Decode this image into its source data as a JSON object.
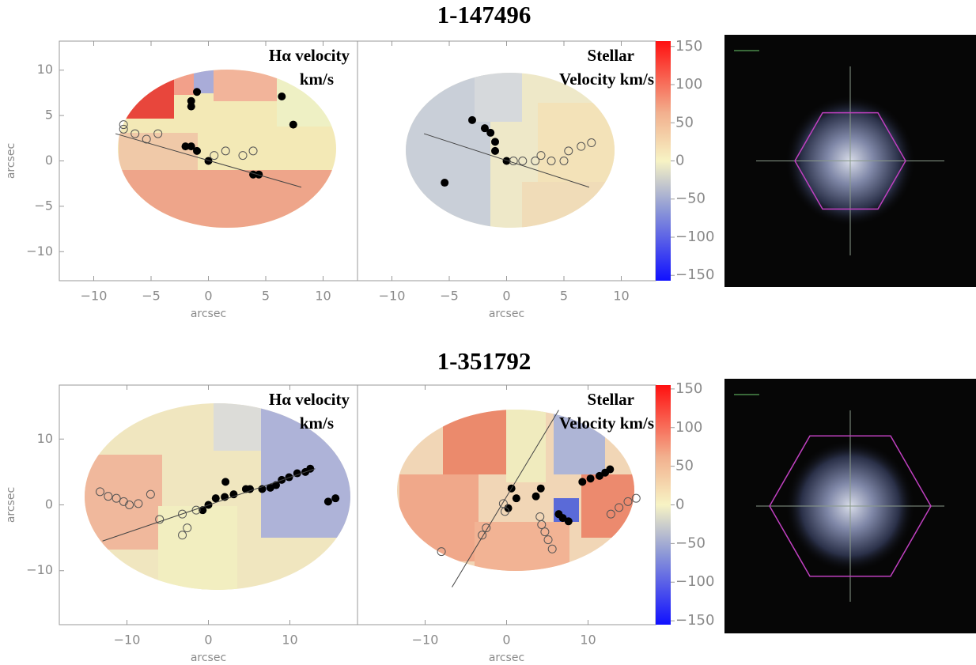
{
  "chart_data": [
    {
      "type": "scatter",
      "title": "1-147496",
      "panels": [
        {
          "label": [
            "Hα velocity",
            "km/s"
          ],
          "xlabel": "arcsec",
          "ylabel": "arcsec",
          "xlim": [
            -13,
            13
          ],
          "ylim": [
            -13.2,
            13.2
          ],
          "xticks": [
            {
              "value": -10,
              "label": "−10"
            },
            {
              "value": -5,
              "label": "−5"
            },
            0,
            5,
            10
          ],
          "yticks": [
            {
              "value": -10,
              "label": "−10"
            },
            {
              "value": -5,
              "label": "−5"
            },
            0,
            5,
            10
          ],
          "series": [
            {
              "marker": "filled",
              "color": "#000000",
              "x": [
                -1.0,
                -1.5,
                -1.5,
                6.4,
                7.4,
                -2.0,
                -1.5,
                -1.0,
                0,
                3.9,
                4.4
              ],
              "y": [
                7.6,
                6.6,
                6.0,
                7.1,
                4.0,
                1.6,
                1.6,
                1.1,
                0,
                -1.5,
                -1.5
              ]
            },
            {
              "marker": "open",
              "color": "#555555",
              "x": [
                -7.4,
                -7.4,
                -6.4,
                -5.4,
                -4.4,
                0.5,
                1.5,
                3.0,
                3.9
              ],
              "y": [
                4.0,
                3.5,
                3.0,
                2.4,
                3.0,
                0.6,
                1.1,
                0.6,
                1.1
              ]
            },
            {
              "marker": "line",
              "color": "#444444",
              "x": [
                -8.1,
                8.1
              ],
              "y": [
                3.0,
                -2.9
              ]
            }
          ]
        },
        {
          "label": [
            "Stellar",
            "Velocity km/s"
          ],
          "xlabel": "arcsec",
          "xlim": [
            -13,
            13
          ],
          "ylim": [
            -13.2,
            13.2
          ],
          "xticks": [
            {
              "value": -10,
              "label": "−10"
            },
            {
              "value": -5,
              "label": "−5"
            },
            0,
            5,
            10
          ],
          "series": [
            {
              "marker": "filled",
              "color": "#000000",
              "x": [
                -3.0,
                -1.9,
                -1.4,
                -1.0,
                -1.0,
                0,
                -5.4
              ],
              "y": [
                4.5,
                3.6,
                3.1,
                2.1,
                1.1,
                0,
                -2.4
              ]
            },
            {
              "marker": "open",
              "color": "#555555",
              "x": [
                0.6,
                1.4,
                2.5,
                3.0,
                3.9,
                5.0,
                5.4,
                6.5,
                7.4
              ],
              "y": [
                0,
                0,
                0,
                0.6,
                0,
                0,
                1.1,
                1.6,
                2.0
              ]
            },
            {
              "marker": "line",
              "color": "#444444",
              "x": [
                -7.2,
                7.2
              ],
              "y": [
                3.0,
                -2.9
              ]
            }
          ]
        }
      ],
      "colorbar": {
        "ylim": [
          -157,
          157
        ],
        "yticks": [
          {
            "value": -150,
            "label": "−150"
          },
          {
            "value": -100,
            "label": "−100"
          },
          {
            "value": -50,
            "label": "−50"
          },
          0,
          50,
          100,
          150
        ]
      }
    },
    {
      "type": "scatter",
      "title": "1-351792",
      "panels": [
        {
          "label": [
            "Hα velocity",
            "km/s"
          ],
          "xlabel": "arcsec",
          "ylabel": "arcsec",
          "xlim": [
            -18.3,
            18.3
          ],
          "ylim": [
            -18.2,
            18.2
          ],
          "xticks": [
            {
              "value": -10,
              "label": "−10"
            },
            0,
            10
          ],
          "yticks": [
            {
              "value": -10,
              "label": "−10"
            },
            0,
            10
          ],
          "series": [
            {
              "marker": "filled",
              "color": "#000000",
              "x": [
                -0.7,
                0,
                0.9,
                2.0,
                3.1,
                2.1,
                4.6,
                5.1,
                6.6,
                7.6,
                8.3,
                9.0,
                9.9,
                10.9,
                11.9,
                12.5,
                14.7,
                15.6
              ],
              "y": [
                -0.8,
                0,
                1.0,
                1.2,
                1.6,
                3.5,
                2.4,
                2.4,
                2.4,
                2.6,
                3.0,
                3.8,
                4.2,
                4.8,
                5.0,
                5.5,
                0.5,
                1.0
              ]
            },
            {
              "marker": "open",
              "color": "#555555",
              "x": [
                -13.3,
                -12.3,
                -11.3,
                -10.4,
                -9.7,
                -8.6,
                -7.1,
                -6.0,
                -3.2,
                -2.6,
                -3.2,
                -1.5
              ],
              "y": [
                2.0,
                1.3,
                1.0,
                0.5,
                0,
                0.2,
                1.6,
                -2.2,
                -1.4,
                -3.5,
                -4.6,
                -0.8
              ]
            },
            {
              "marker": "line",
              "color": "#444444",
              "x": [
                -13.0,
                13.1
              ],
              "y": [
                -5.5,
                5.5
              ]
            }
          ]
        },
        {
          "label": [
            "Stellar",
            "Velocity km/s"
          ],
          "xlabel": "arcsec",
          "xlim": [
            -18.3,
            18.3
          ],
          "ylim": [
            -18.2,
            18.2
          ],
          "xticks": [
            {
              "value": -10,
              "label": "−10"
            },
            0,
            10
          ],
          "series": [
            {
              "marker": "filled",
              "color": "#000000",
              "x": [
                0.6,
                1.2,
                0.2,
                4.2,
                3.6,
                6.4,
                6.9,
                7.6,
                9.3,
                10.3,
                11.4,
                12.1,
                12.7
              ],
              "y": [
                2.5,
                1.0,
                -0.5,
                2.5,
                1.3,
                -1.4,
                -2.0,
                -2.5,
                3.5,
                4.0,
                4.4,
                4.9,
                5.4
              ]
            },
            {
              "marker": "open",
              "color": "#555555",
              "x": [
                -8.0,
                -3.0,
                -2.5,
                -0.4,
                -0.2,
                4.1,
                4.3,
                4.7,
                5.1,
                5.6,
                12.8,
                13.8,
                14.9,
                15.9
              ],
              "y": [
                -7.1,
                -4.6,
                -3.5,
                0.2,
                -1.0,
                -1.8,
                -3.0,
                -4.1,
                -5.3,
                -6.7,
                -1.4,
                -0.4,
                0.5,
                1.0
              ]
            },
            {
              "marker": "line",
              "color": "#444444",
              "x": [
                -6.7,
                6.4
              ],
              "y": [
                -12.5,
                14.4
              ]
            }
          ]
        }
      ],
      "colorbar": {
        "ylim": [
          -155,
          155
        ],
        "yticks": [
          {
            "value": -150,
            "label": "−150"
          },
          {
            "value": -100,
            "label": "−100"
          },
          {
            "value": -50,
            "label": "−50"
          },
          0,
          50,
          100,
          150
        ]
      }
    }
  ]
}
